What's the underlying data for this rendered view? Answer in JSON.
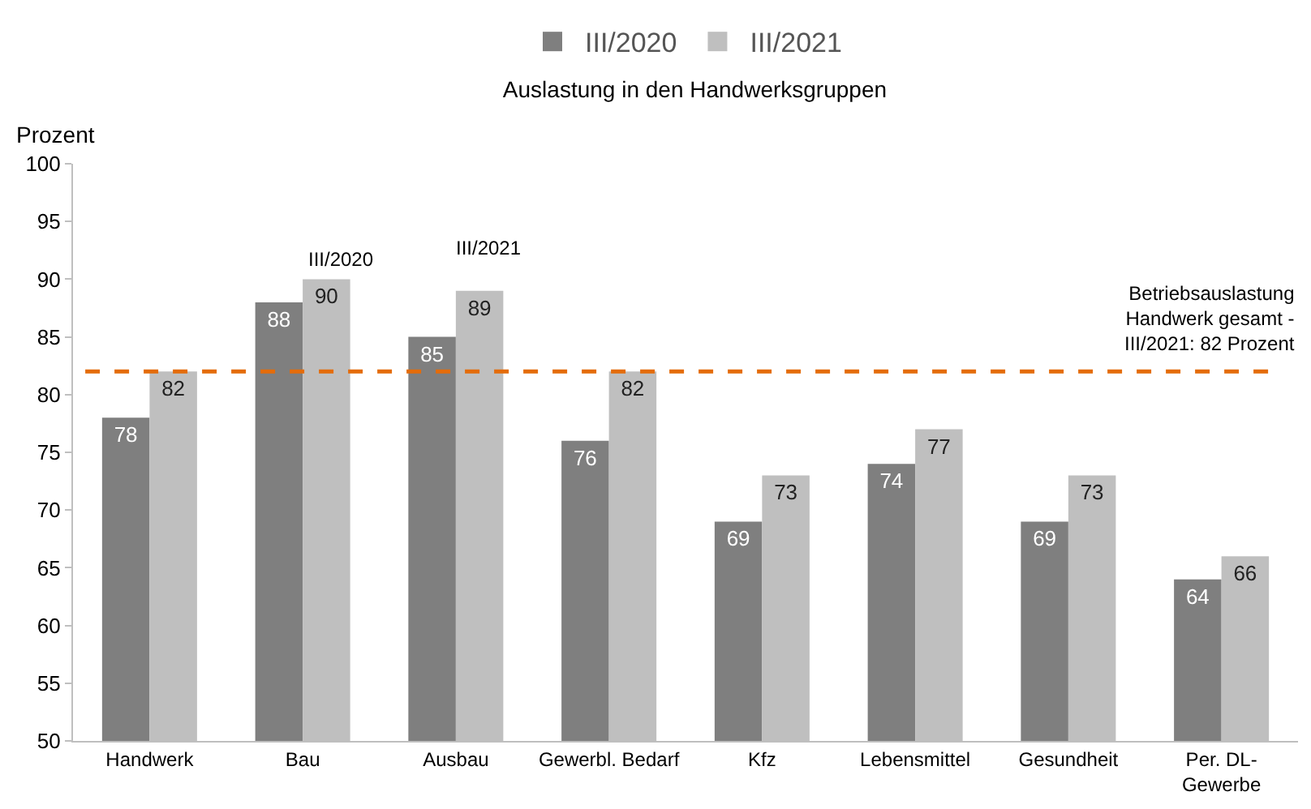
{
  "chart_data": {
    "type": "bar",
    "title": "Auslastung in den Handwerksgruppen",
    "ylabel": "Prozent",
    "categories": [
      "Handwerk",
      "Bau",
      "Ausbau",
      "Gewerbl. Bedarf",
      "Kfz",
      "Lebensmittel",
      "Gesundheit",
      "Per. DL-Gewerbe"
    ],
    "series": [
      {
        "name": "III/2020",
        "color": "#7f7f7f",
        "values": [
          78,
          88,
          85,
          76,
          69,
          74,
          69,
          64
        ]
      },
      {
        "name": "III/2021",
        "color": "#bfbfbf",
        "values": [
          82,
          90,
          89,
          82,
          73,
          77,
          73,
          66
        ]
      }
    ],
    "ylim": [
      50,
      100
    ],
    "yticks": [
      50,
      55,
      60,
      65,
      70,
      75,
      80,
      85,
      90,
      95,
      100
    ],
    "grid": false,
    "legend": "top",
    "data_labels": true,
    "ref_lines": [
      {
        "axis": "y",
        "value": 82,
        "label": "Betriebsauslastung Handwerk gesamt - III/2021: 82 Prozent",
        "color": "#e46c0a",
        "line_style": "dashed"
      }
    ],
    "annotations": [
      "III/2020",
      "III/2021"
    ]
  }
}
